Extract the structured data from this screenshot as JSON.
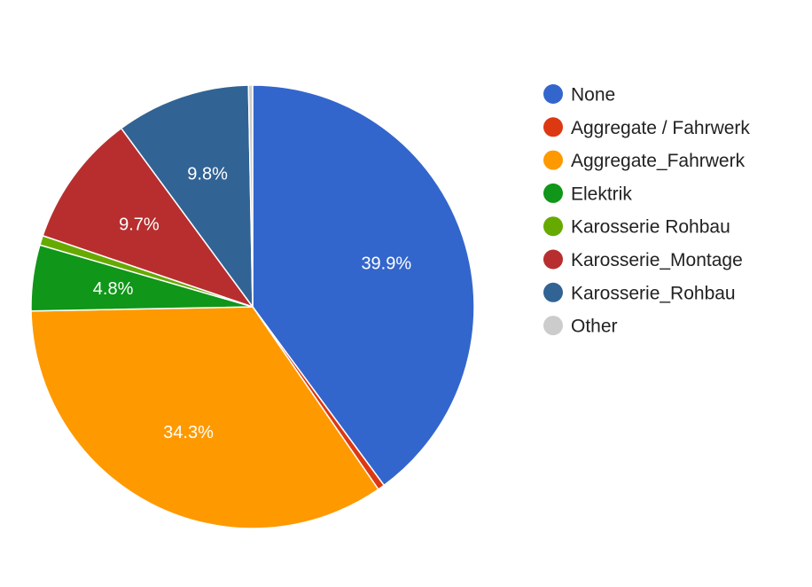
{
  "chart_data": {
    "type": "pie",
    "series": [
      {
        "values": [
          {
            "label": "None",
            "value": 39.9,
            "color": "#3366cc",
            "label_text": "39.9%"
          },
          {
            "label": "Aggregate / Fahrwerk",
            "value": 0.5,
            "color": "#dc3912",
            "label_text": ""
          },
          {
            "label": "Aggregate_Fahrwerk",
            "value": 34.3,
            "color": "#ff9900",
            "label_text": "34.3%"
          },
          {
            "label": "Elektrik",
            "value": 4.8,
            "color": "#109618",
            "label_text": "4.8%"
          },
          {
            "label": "Karosserie Rohbau",
            "value": 0.7,
            "color": "#66aa00",
            "label_text": ""
          },
          {
            "label": "Karosserie_Montage",
            "value": 9.7,
            "color": "#b82e2e",
            "label_text": "9.7%"
          },
          {
            "label": "Karosserie_Rohbau",
            "value": 9.8,
            "color": "#316395",
            "label_text": "9.8%"
          },
          {
            "label": "Other",
            "value": 0.3,
            "color": "#cccccc",
            "label_text": ""
          }
        ]
      }
    ],
    "legend": {
      "placement": "right"
    }
  }
}
